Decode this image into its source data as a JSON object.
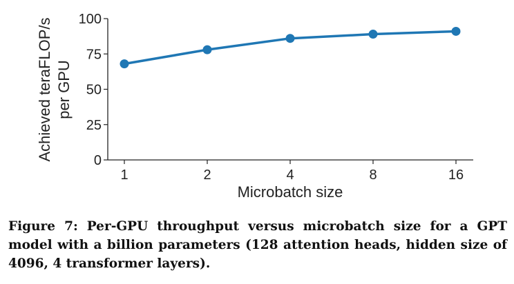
{
  "chart_data": {
    "type": "line",
    "title": "",
    "xlabel": "Microbatch size",
    "ylabel_lines": [
      "Achieved teraFLOP/s",
      "per GPU"
    ],
    "categories": [
      "1",
      "2",
      "4",
      "8",
      "16"
    ],
    "x_scale": "log2 (categorical spacing)",
    "values": [
      68,
      78,
      86,
      89,
      91
    ],
    "ylim": [
      0,
      100
    ],
    "yticks": [
      "0",
      "25",
      "50",
      "75",
      "100"
    ],
    "grid": false,
    "legend": "none",
    "color": "#1f77b4"
  },
  "caption": "Figure 7: Per-GPU throughput versus microbatch size for a GPT model with a billion parameters (128 attention heads, hidden size of 4096, 4 transformer layers)."
}
